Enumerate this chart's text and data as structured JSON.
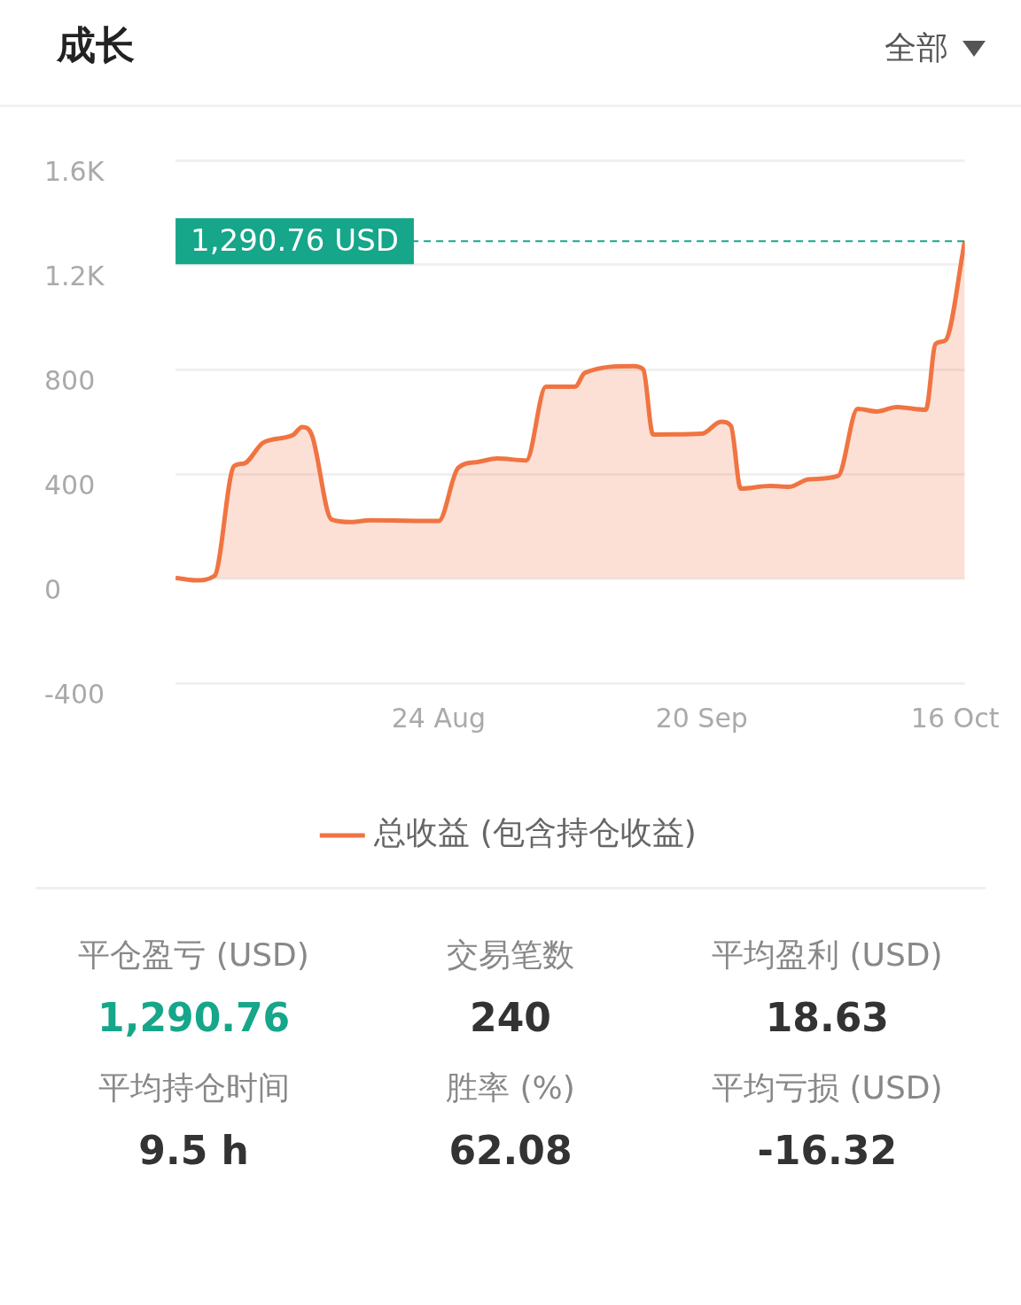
{
  "chart_data": {
    "type": "area",
    "title": "成长",
    "x": [
      "--07-28",
      "--07-30",
      "--08-01",
      "--08-03",
      "--08-04",
      "--08-06",
      "--08-09",
      "--08-10",
      "--08-11",
      "--08-13",
      "--08-15",
      "--08-17",
      "--08-24",
      "--08-26",
      "--08-28",
      "--08-30",
      "--09-02",
      "--09-04",
      "--09-07",
      "--09-08",
      "--09-13",
      "--09-14",
      "--09-15",
      "--09-20",
      "--09-22",
      "--09-23",
      "--09-24",
      "--09-27",
      "--09-29",
      "--10-01",
      "--10-04",
      "--10-06",
      "--10-08",
      "--10-10",
      "--10-13",
      "--10-14",
      "--10-15",
      "--10-17"
    ],
    "series": [
      {
        "name": "总收益 (包含持仓收益)",
        "color": "#f07442",
        "values": [
          3,
          -7,
          10,
          430,
          440,
          520,
          548,
          580,
          548,
          226,
          216,
          223,
          220,
          423,
          446,
          459,
          452,
          734,
          734,
          787,
          813,
          800,
          551,
          554,
          600,
          584,
          344,
          354,
          351,
          380,
          393,
          649,
          639,
          656,
          646,
          898,
          911,
          1290.76
        ]
      }
    ],
    "xlim": [
      "--07-28",
      "--10-17"
    ],
    "xticks": [
      {
        "value": "--08-24",
        "label": "24 Aug"
      },
      {
        "value": "--09-20",
        "label": "20 Sep"
      },
      {
        "value": "--10-16",
        "label": "16 Oct"
      }
    ],
    "ylim": [
      -400,
      1600
    ],
    "yticks": [
      -400,
      0,
      400,
      800,
      {
        "value": 1200,
        "label": "1.2K"
      },
      {
        "value": 1600,
        "label": "1.6K"
      }
    ],
    "ref_lines": [
      {
        "axis": "y",
        "value": 1290.76,
        "label": "1,290.76 USD",
        "color": "#16a68a",
        "line_style": "dashed"
      }
    ],
    "grid": "y",
    "legend": "bottom",
    "marker": "none",
    "annotations": [
      "全部",
      "平仓盈亏 (USD)",
      "1,290.76",
      "交易笔数",
      "240",
      "平均盈利 (USD)",
      "18.63",
      "平均持仓时间",
      "9.5 h",
      "胜率 (%)",
      "62.08",
      "平均亏损 (USD)",
      "-16.32"
    ]
  }
}
